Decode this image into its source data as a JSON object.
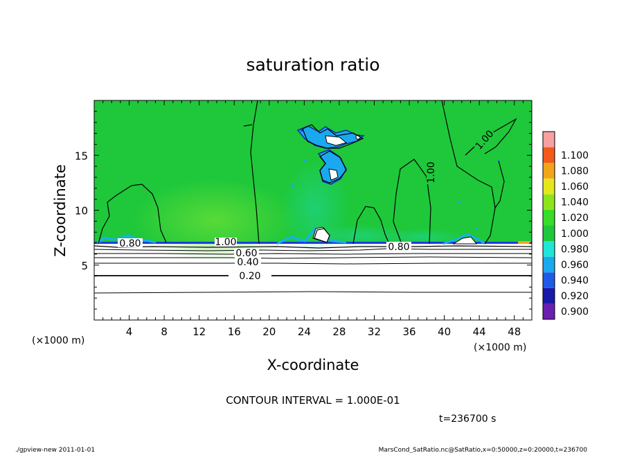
{
  "chart_data": {
    "type": "heatmap",
    "title": "saturation ratio",
    "xlabel": "X-coordinate",
    "ylabel": "Z-coordinate",
    "x_unit": "(×1000 m)",
    "z_unit": "(×1000 m)",
    "xlim": [
      0,
      50
    ],
    "zlim": [
      0,
      20
    ],
    "x_ticks": [
      "4",
      "8",
      "12",
      "16",
      "20",
      "24",
      "28",
      "32",
      "36",
      "40",
      "44",
      "48"
    ],
    "y_ticks": [
      "5",
      "10",
      "15"
    ],
    "colorbar": {
      "levels": [
        "0.900",
        "0.920",
        "0.940",
        "0.960",
        "0.980",
        "1.000",
        "1.020",
        "1.040",
        "1.060",
        "1.080",
        "1.100"
      ],
      "colors": [
        "#6a1fb0",
        "#1a1aa8",
        "#1f5be6",
        "#1aa9ef",
        "#1ee6d6",
        "#1ec83a",
        "#37dd28",
        "#8ee41b",
        "#e6e61e",
        "#f3a51a",
        "#f35a1a",
        "#f7a0a0"
      ]
    },
    "contour_labels": [
      "1.00",
      "1.00",
      "1.00",
      "0.80",
      "0.80",
      "0.60",
      "0.40",
      "0.20"
    ],
    "contour_interval": "CONTOUR INTERVAL = 1.000E-01",
    "time": "t=236700 s"
  },
  "footer": {
    "left": "./gpview-new  2011-01-01",
    "right": "MarsCond_SatRatio.nc@SatRatio,x=0:50000,z=0:20000,t=236700"
  }
}
